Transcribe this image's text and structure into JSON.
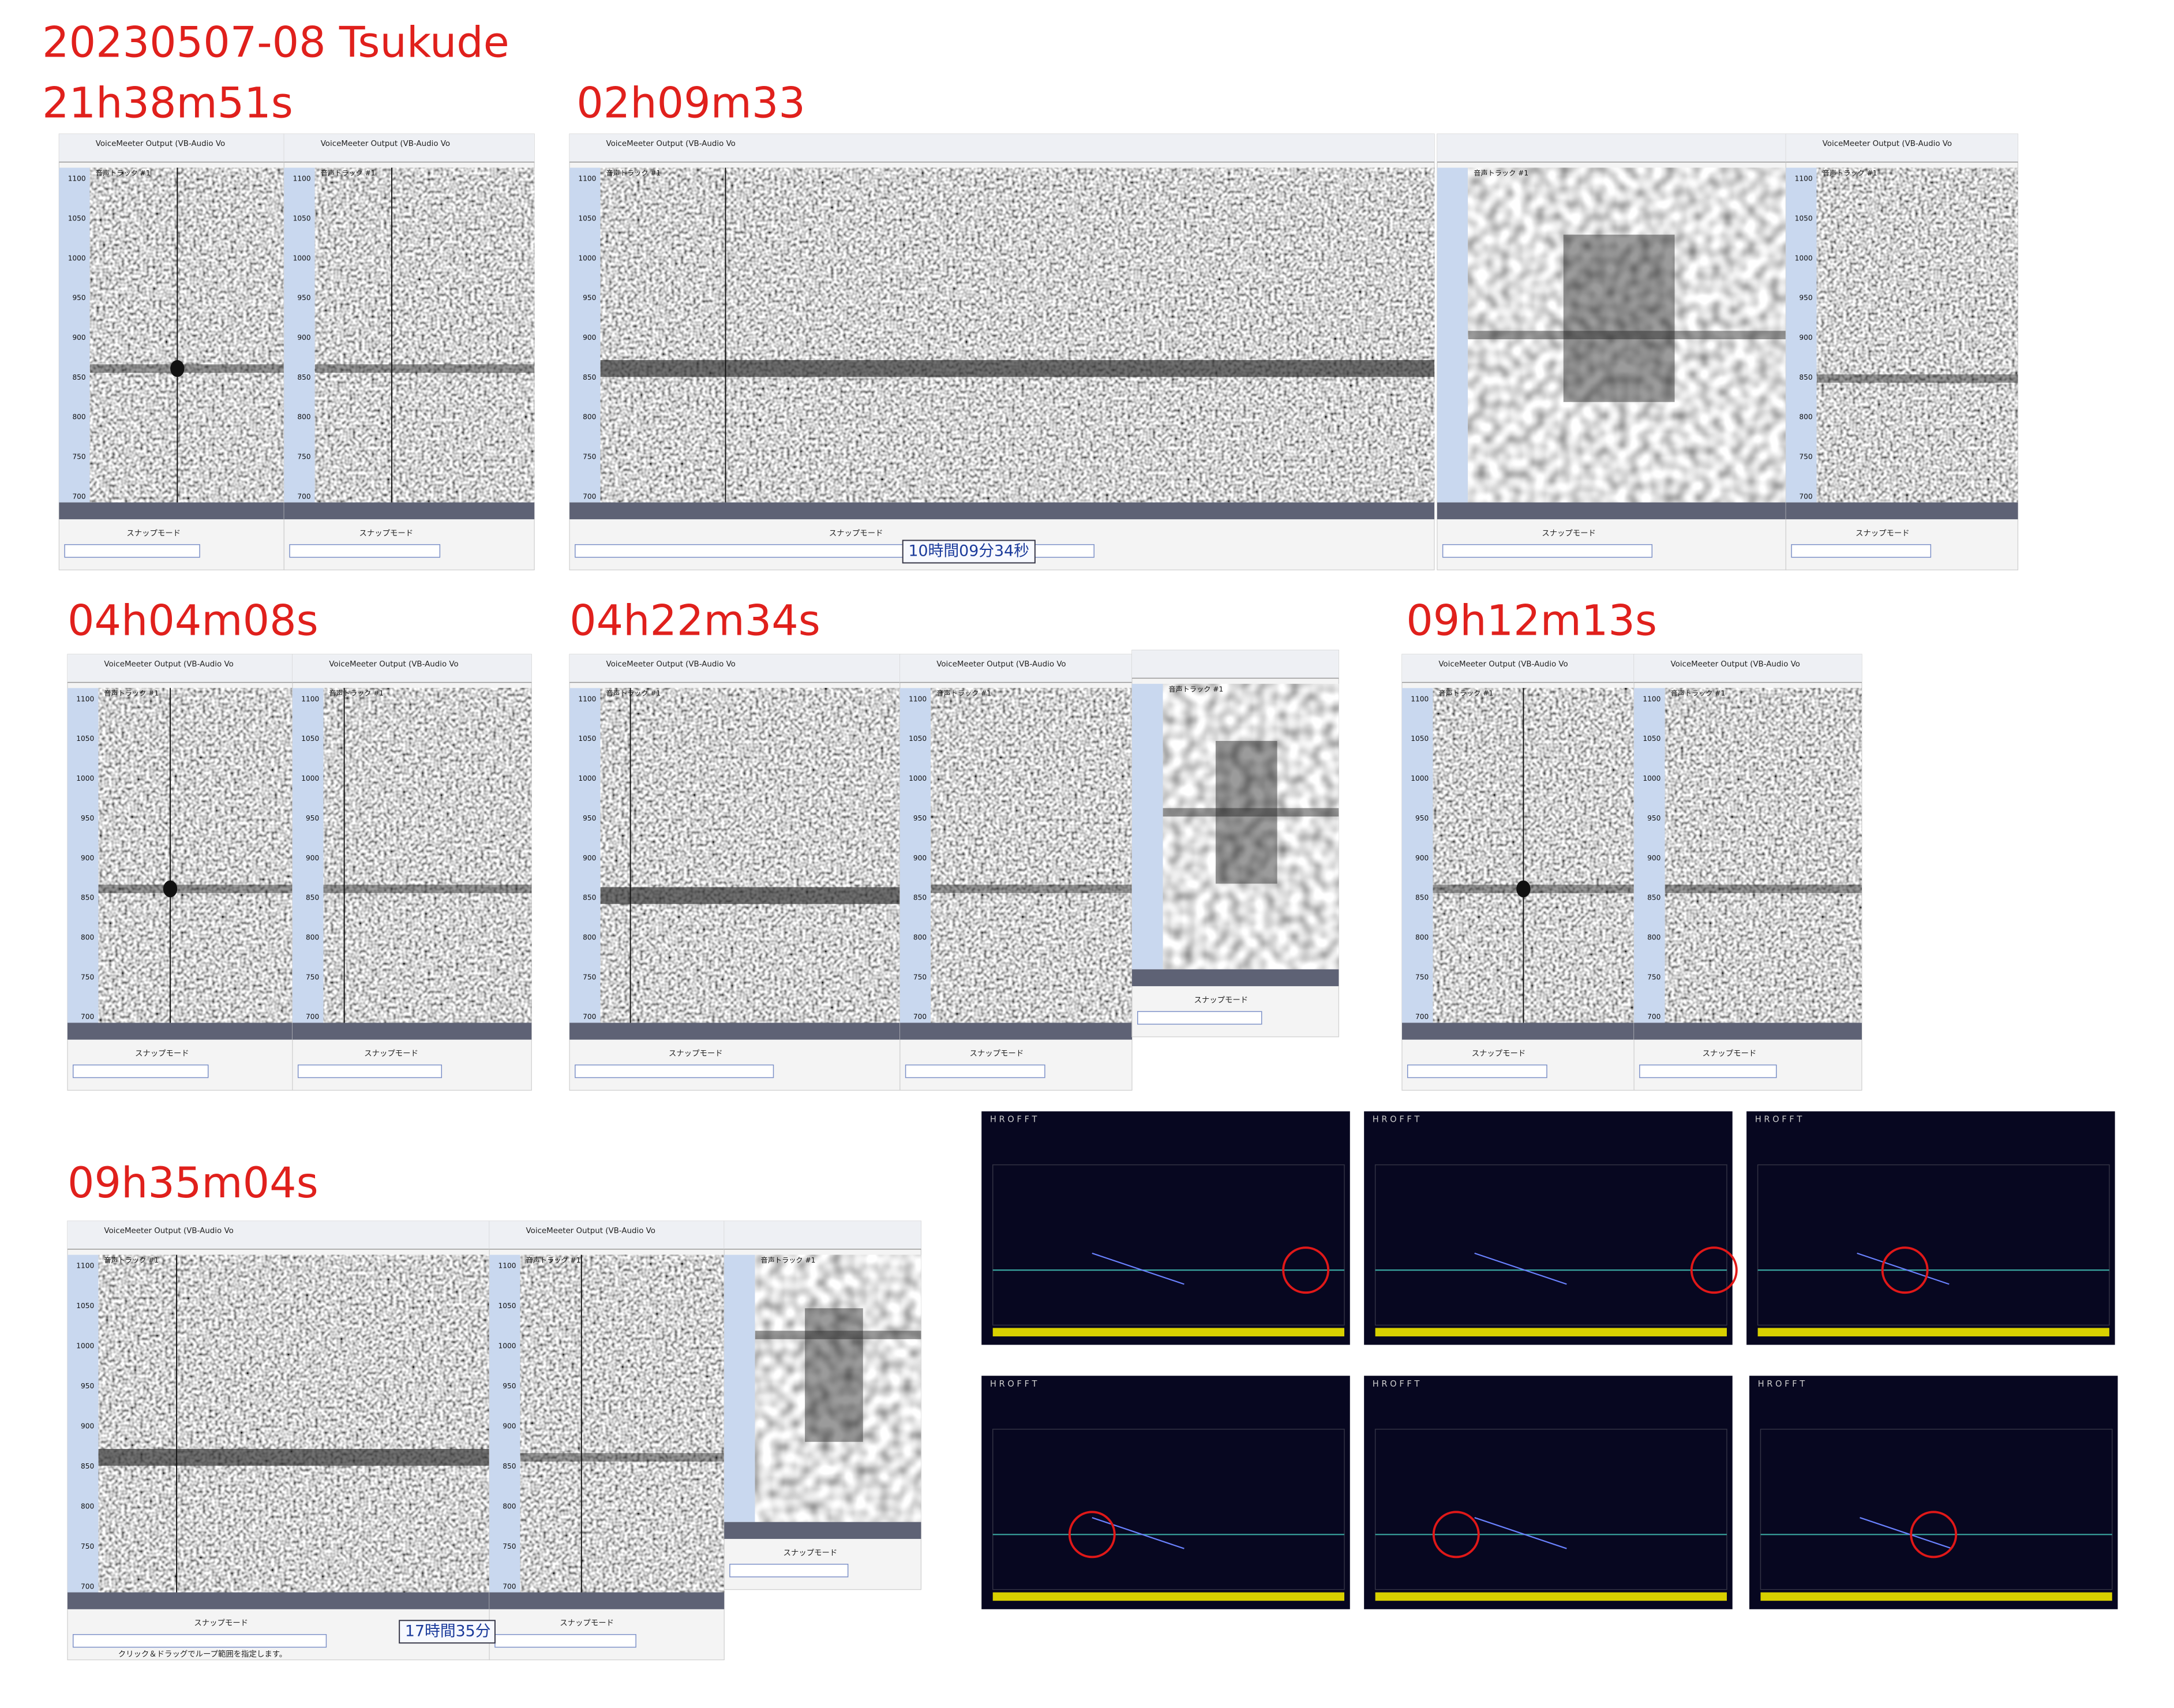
{
  "title": "20230507-08  Tsukude",
  "events": [
    {
      "label": "21h38m51s"
    },
    {
      "label": "02h09m33"
    },
    {
      "label": "04h04m08s"
    },
    {
      "label": "04h22m34s"
    },
    {
      "label": "09h12m13s"
    },
    {
      "label": "09h35m04s"
    }
  ],
  "freq_ticks": [
    "1100",
    "1050",
    "1000",
    "950",
    "900",
    "850",
    "800",
    "750",
    "700"
  ],
  "toolbar_text": "VoiceMeeter Output (VB-Audio Vo",
  "track_label": "音声トラック #1",
  "snap_label": "スナップモード",
  "notes": [
    "10時間09分34秒",
    "17時間35分"
  ],
  "hrofft_header": "H R O F F T",
  "status_text": "クリック＆ドラッグでループ範囲を指定します。"
}
